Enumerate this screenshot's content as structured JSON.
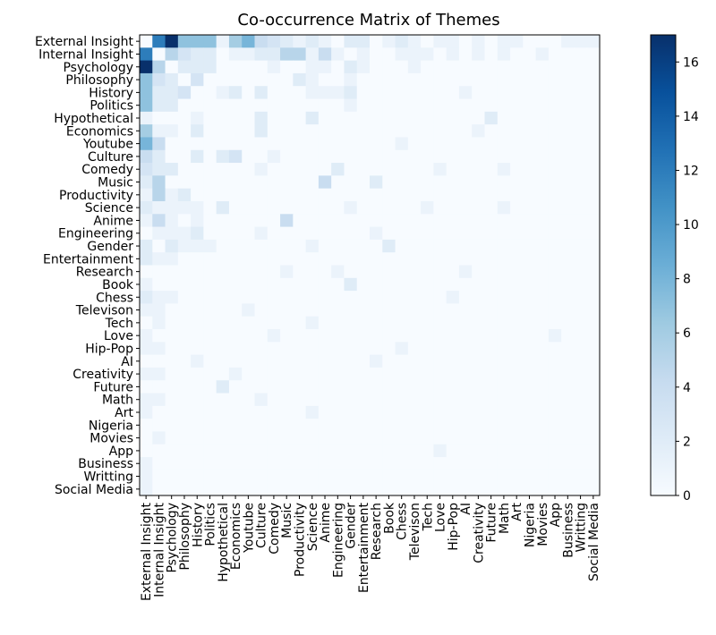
{
  "chart_data": {
    "type": "heatmap",
    "title": "Co-occurrence Matrix of Themes",
    "xlabel": "",
    "ylabel": "",
    "colormap": "Blues",
    "color_min": "#f7fbff",
    "color_max": "#08306b",
    "value_range": [
      0,
      17
    ],
    "colorbar_ticks": [
      0,
      2,
      4,
      6,
      8,
      10,
      12,
      14,
      16
    ],
    "categories": [
      "External Insight",
      "Internal Insight",
      "Psychology",
      "Philosophy",
      "History",
      "Politics",
      "Hypothetical",
      "Economics",
      "Youtube",
      "Culture",
      "Comedy",
      "Music",
      "Productivity",
      "Science",
      "Anime",
      "Engineering",
      "Gender",
      "Entertainment",
      "Research",
      "Book",
      "Chess",
      "Televison",
      "Tech",
      "Love",
      "Hip-Pop",
      "AI",
      "Creativity",
      "Future",
      "Math",
      "Art",
      "Nigeria",
      "Movies",
      "App",
      "Business",
      "Writting",
      "Social Media"
    ],
    "matrix": [
      [
        0,
        12,
        17,
        7,
        7,
        7,
        1,
        6,
        8,
        4,
        3,
        2,
        1,
        2,
        1,
        0,
        2,
        2,
        0,
        1,
        2,
        1,
        0,
        1,
        1,
        0,
        1,
        0,
        1,
        1,
        0,
        0,
        0,
        1,
        1,
        1
      ],
      [
        12,
        0,
        5,
        3,
        2,
        2,
        0,
        1,
        1,
        2,
        2,
        5,
        5,
        1,
        4,
        1,
        0,
        1,
        0,
        0,
        1,
        1,
        1,
        0,
        1,
        0,
        1,
        0,
        1,
        0,
        0,
        1,
        0,
        0,
        0,
        0
      ],
      [
        17,
        5,
        0,
        2,
        2,
        2,
        0,
        0,
        0,
        0,
        1,
        0,
        0,
        1,
        1,
        0,
        2,
        1,
        0,
        0,
        0,
        1,
        0,
        0,
        0,
        0,
        0,
        0,
        0,
        0,
        0,
        0,
        0,
        0,
        0,
        0
      ],
      [
        7,
        3,
        2,
        0,
        3,
        0,
        0,
        0,
        0,
        0,
        0,
        0,
        2,
        1,
        0,
        0,
        1,
        0,
        0,
        0,
        0,
        0,
        0,
        0,
        0,
        0,
        0,
        0,
        0,
        0,
        0,
        0,
        0,
        0,
        0,
        0
      ],
      [
        7,
        2,
        2,
        3,
        0,
        0,
        1,
        2,
        0,
        2,
        0,
        0,
        0,
        1,
        1,
        1,
        2,
        0,
        0,
        0,
        0,
        0,
        0,
        0,
        0,
        1,
        0,
        0,
        0,
        0,
        0,
        0,
        0,
        0,
        0,
        0
      ],
      [
        7,
        2,
        2,
        0,
        0,
        0,
        0,
        0,
        0,
        0,
        0,
        0,
        0,
        0,
        0,
        0,
        1,
        0,
        0,
        0,
        0,
        0,
        0,
        0,
        0,
        0,
        0,
        0,
        0,
        0,
        0,
        0,
        0,
        0,
        0,
        0
      ],
      [
        1,
        0,
        0,
        0,
        1,
        0,
        0,
        0,
        0,
        2,
        0,
        0,
        0,
        2,
        0,
        0,
        0,
        0,
        0,
        0,
        0,
        0,
        0,
        0,
        0,
        0,
        0,
        2,
        0,
        0,
        0,
        0,
        0,
        0,
        0,
        0
      ],
      [
        6,
        1,
        1,
        0,
        2,
        0,
        0,
        0,
        0,
        2,
        0,
        0,
        0,
        0,
        0,
        0,
        0,
        0,
        0,
        0,
        0,
        0,
        0,
        0,
        0,
        0,
        1,
        0,
        0,
        0,
        0,
        0,
        0,
        0,
        0,
        0
      ],
      [
        8,
        4,
        0,
        0,
        0,
        0,
        0,
        0,
        0,
        0,
        0,
        0,
        0,
        0,
        0,
        0,
        0,
        0,
        0,
        0,
        1,
        0,
        0,
        0,
        0,
        0,
        0,
        0,
        0,
        0,
        0,
        0,
        0,
        0,
        0,
        0
      ],
      [
        4,
        2,
        0,
        0,
        2,
        0,
        2,
        3,
        0,
        0,
        1,
        0,
        0,
        0,
        0,
        0,
        0,
        0,
        0,
        0,
        0,
        0,
        0,
        0,
        0,
        0,
        0,
        0,
        0,
        0,
        0,
        0,
        0,
        0,
        0,
        0
      ],
      [
        3,
        2,
        2,
        0,
        0,
        0,
        0,
        0,
        0,
        1,
        0,
        0,
        0,
        0,
        0,
        2,
        0,
        0,
        0,
        0,
        0,
        0,
        0,
        1,
        0,
        0,
        0,
        0,
        1,
        0,
        0,
        0,
        0,
        0,
        0,
        0
      ],
      [
        2,
        5,
        0,
        0,
        0,
        0,
        0,
        0,
        0,
        0,
        0,
        0,
        0,
        0,
        4,
        0,
        0,
        0,
        2,
        0,
        0,
        0,
        0,
        0,
        0,
        0,
        0,
        0,
        0,
        0,
        0,
        0,
        0,
        0,
        0,
        0
      ],
      [
        1,
        5,
        1,
        2,
        0,
        0,
        0,
        0,
        0,
        0,
        0,
        0,
        0,
        0,
        0,
        0,
        0,
        0,
        0,
        0,
        0,
        0,
        0,
        0,
        0,
        0,
        0,
        0,
        0,
        0,
        0,
        0,
        0,
        0,
        0,
        0
      ],
      [
        2,
        1,
        1,
        1,
        1,
        0,
        2,
        0,
        0,
        0,
        0,
        0,
        0,
        0,
        0,
        0,
        1,
        0,
        0,
        0,
        0,
        0,
        1,
        0,
        0,
        0,
        0,
        0,
        1,
        0,
        0,
        0,
        0,
        0,
        0,
        0
      ],
      [
        1,
        4,
        1,
        0,
        1,
        0,
        0,
        0,
        0,
        0,
        0,
        4,
        0,
        0,
        0,
        0,
        0,
        0,
        0,
        0,
        0,
        0,
        0,
        0,
        0,
        0,
        0,
        0,
        0,
        0,
        0,
        0,
        0,
        0,
        0,
        0
      ],
      [
        0,
        1,
        1,
        1,
        2,
        0,
        0,
        0,
        0,
        1,
        0,
        0,
        0,
        0,
        0,
        0,
        0,
        0,
        1,
        0,
        0,
        0,
        0,
        0,
        0,
        0,
        0,
        0,
        0,
        0,
        0,
        0,
        0,
        0,
        0,
        0
      ],
      [
        2,
        0,
        2,
        1,
        1,
        1,
        0,
        0,
        0,
        0,
        0,
        0,
        0,
        1,
        0,
        0,
        0,
        0,
        0,
        2,
        0,
        0,
        0,
        0,
        0,
        0,
        0,
        0,
        0,
        0,
        0,
        0,
        0,
        0,
        0,
        0
      ],
      [
        2,
        1,
        1,
        0,
        0,
        0,
        0,
        0,
        0,
        0,
        0,
        0,
        0,
        0,
        0,
        0,
        0,
        0,
        0,
        0,
        0,
        0,
        0,
        0,
        0,
        0,
        0,
        0,
        0,
        0,
        0,
        0,
        0,
        0,
        0,
        0
      ],
      [
        0,
        0,
        0,
        0,
        0,
        0,
        0,
        0,
        0,
        0,
        0,
        1,
        0,
        0,
        0,
        1,
        0,
        0,
        0,
        0,
        0,
        0,
        0,
        0,
        0,
        1,
        0,
        0,
        0,
        0,
        0,
        0,
        0,
        0,
        0,
        0
      ],
      [
        1,
        0,
        0,
        0,
        0,
        0,
        0,
        0,
        0,
        0,
        0,
        0,
        0,
        0,
        0,
        0,
        2,
        0,
        0,
        0,
        0,
        0,
        0,
        0,
        0,
        0,
        0,
        0,
        0,
        0,
        0,
        0,
        0,
        0,
        0,
        0
      ],
      [
        2,
        1,
        1,
        0,
        0,
        0,
        0,
        0,
        0,
        0,
        0,
        0,
        0,
        0,
        0,
        0,
        0,
        0,
        0,
        0,
        0,
        0,
        0,
        0,
        1,
        0,
        0,
        0,
        0,
        0,
        0,
        0,
        0,
        0,
        0,
        0
      ],
      [
        1,
        1,
        0,
        0,
        0,
        0,
        0,
        0,
        1,
        0,
        0,
        0,
        0,
        0,
        0,
        0,
        0,
        0,
        0,
        0,
        0,
        0,
        0,
        0,
        0,
        0,
        0,
        0,
        0,
        0,
        0,
        0,
        0,
        0,
        0,
        0
      ],
      [
        0,
        1,
        0,
        0,
        0,
        0,
        0,
        0,
        0,
        0,
        0,
        0,
        0,
        1,
        0,
        0,
        0,
        0,
        0,
        0,
        0,
        0,
        0,
        0,
        0,
        0,
        0,
        0,
        0,
        0,
        0,
        0,
        0,
        0,
        0,
        0
      ],
      [
        1,
        0,
        0,
        0,
        0,
        0,
        0,
        0,
        0,
        0,
        1,
        0,
        0,
        0,
        0,
        0,
        0,
        0,
        0,
        0,
        0,
        0,
        0,
        0,
        0,
        0,
        0,
        0,
        0,
        0,
        0,
        0,
        1,
        0,
        0,
        0
      ],
      [
        1,
        1,
        0,
        0,
        0,
        0,
        0,
        0,
        0,
        0,
        0,
        0,
        0,
        0,
        0,
        0,
        0,
        0,
        0,
        0,
        1,
        0,
        0,
        0,
        0,
        0,
        0,
        0,
        0,
        0,
        0,
        0,
        0,
        0,
        0,
        0
      ],
      [
        0,
        0,
        0,
        0,
        1,
        0,
        0,
        0,
        0,
        0,
        0,
        0,
        0,
        0,
        0,
        0,
        0,
        0,
        1,
        0,
        0,
        0,
        0,
        0,
        0,
        0,
        0,
        0,
        0,
        0,
        0,
        0,
        0,
        0,
        0,
        0
      ],
      [
        1,
        1,
        0,
        0,
        0,
        0,
        0,
        1,
        0,
        0,
        0,
        0,
        0,
        0,
        0,
        0,
        0,
        0,
        0,
        0,
        0,
        0,
        0,
        0,
        0,
        0,
        0,
        0,
        0,
        0,
        0,
        0,
        0,
        0,
        0,
        0
      ],
      [
        0,
        0,
        0,
        0,
        0,
        0,
        2,
        0,
        0,
        0,
        0,
        0,
        0,
        0,
        0,
        0,
        0,
        0,
        0,
        0,
        0,
        0,
        0,
        0,
        0,
        0,
        0,
        0,
        0,
        0,
        0,
        0,
        0,
        0,
        0,
        0
      ],
      [
        1,
        1,
        0,
        0,
        0,
        0,
        0,
        0,
        0,
        1,
        0,
        0,
        0,
        0,
        0,
        0,
        0,
        0,
        0,
        0,
        0,
        0,
        0,
        0,
        0,
        0,
        0,
        0,
        0,
        0,
        0,
        0,
        0,
        0,
        0,
        0
      ],
      [
        1,
        0,
        0,
        0,
        0,
        0,
        0,
        0,
        0,
        0,
        0,
        0,
        0,
        1,
        0,
        0,
        0,
        0,
        0,
        0,
        0,
        0,
        0,
        0,
        0,
        0,
        0,
        0,
        0,
        0,
        0,
        0,
        0,
        0,
        0,
        0
      ],
      [
        0,
        0,
        0,
        0,
        0,
        0,
        0,
        0,
        0,
        0,
        0,
        0,
        0,
        0,
        0,
        0,
        0,
        0,
        0,
        0,
        0,
        0,
        0,
        0,
        0,
        0,
        0,
        0,
        0,
        0,
        0,
        0,
        0,
        0,
        0,
        0
      ],
      [
        0,
        1,
        0,
        0,
        0,
        0,
        0,
        0,
        0,
        0,
        0,
        0,
        0,
        0,
        0,
        0,
        0,
        0,
        0,
        0,
        0,
        0,
        0,
        0,
        0,
        0,
        0,
        0,
        0,
        0,
        0,
        0,
        0,
        0,
        0,
        0
      ],
      [
        0,
        0,
        0,
        0,
        0,
        0,
        0,
        0,
        0,
        0,
        0,
        0,
        0,
        0,
        0,
        0,
        0,
        0,
        0,
        0,
        0,
        0,
        0,
        1,
        0,
        0,
        0,
        0,
        0,
        0,
        0,
        0,
        0,
        0,
        0,
        0
      ],
      [
        1,
        0,
        0,
        0,
        0,
        0,
        0,
        0,
        0,
        0,
        0,
        0,
        0,
        0,
        0,
        0,
        0,
        0,
        0,
        0,
        0,
        0,
        0,
        0,
        0,
        0,
        0,
        0,
        0,
        0,
        0,
        0,
        0,
        0,
        0,
        0
      ],
      [
        1,
        0,
        0,
        0,
        0,
        0,
        0,
        0,
        0,
        0,
        0,
        0,
        0,
        0,
        0,
        0,
        0,
        0,
        0,
        0,
        0,
        0,
        0,
        0,
        0,
        0,
        0,
        0,
        0,
        0,
        0,
        0,
        0,
        0,
        0,
        0
      ],
      [
        1,
        0,
        0,
        0,
        0,
        0,
        0,
        0,
        0,
        0,
        0,
        0,
        0,
        0,
        0,
        0,
        0,
        0,
        0,
        0,
        0,
        0,
        0,
        0,
        0,
        0,
        0,
        0,
        0,
        0,
        0,
        0,
        0,
        0,
        0,
        0
      ]
    ]
  }
}
